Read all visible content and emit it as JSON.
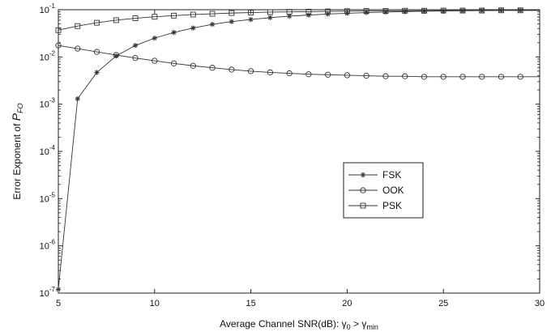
{
  "chart_data": {
    "type": "line",
    "xlabel": {
      "main": "Average Channel SNR(dB): ",
      "g0": "γ",
      "sub0": "0",
      "gt": " > ",
      "gmin": "γ",
      "submin": "min"
    },
    "ylabel": {
      "main": "Error Exponent of  ",
      "p": "P",
      "sub": "FO"
    },
    "xlim": [
      5,
      30
    ],
    "ylim": [
      1e-07,
      0.1
    ],
    "yscale": "log",
    "grid": false,
    "legend_position": "center-right",
    "x_ticks": [
      "5",
      "10",
      "15",
      "20",
      "25",
      "30"
    ],
    "y_ticks": [
      {
        "base": "10",
        "exp": "-7"
      },
      {
        "base": "10",
        "exp": "-6"
      },
      {
        "base": "10",
        "exp": "-5"
      },
      {
        "base": "10",
        "exp": "-4"
      },
      {
        "base": "10",
        "exp": "-3"
      },
      {
        "base": "10",
        "exp": "-2"
      },
      {
        "base": "10",
        "exp": "-1"
      }
    ],
    "x": [
      5,
      6,
      7,
      8,
      9,
      10,
      11,
      12,
      13,
      14,
      15,
      16,
      17,
      18,
      19,
      20,
      21,
      22,
      23,
      24,
      25,
      26,
      27,
      28,
      29
    ],
    "series": [
      {
        "name": "FSK",
        "marker": "asterisk",
        "color": "#333333",
        "values": [
          1.2e-07,
          0.0013,
          0.0047,
          0.0105,
          0.0175,
          0.025,
          0.033,
          0.041,
          0.049,
          0.056,
          0.062,
          0.068,
          0.073,
          0.077,
          0.081,
          0.084,
          0.087,
          0.089,
          0.091,
          0.093,
          0.094,
          0.095,
          0.096,
          0.097,
          0.097
        ]
      },
      {
        "name": "OOK",
        "marker": "circle",
        "color": "#333333",
        "values": [
          0.0175,
          0.015,
          0.0128,
          0.011,
          0.0095,
          0.0083,
          0.0073,
          0.0065,
          0.0059,
          0.0054,
          0.005,
          0.0047,
          0.0045,
          0.0043,
          0.0042,
          0.0041,
          0.004,
          0.0039,
          0.0039,
          0.0038,
          0.0038,
          0.0038,
          0.0038,
          0.0038,
          0.0038
        ]
      },
      {
        "name": "PSK",
        "marker": "square",
        "color": "#333333",
        "values": [
          0.037,
          0.045,
          0.053,
          0.06,
          0.066,
          0.071,
          0.075,
          0.079,
          0.082,
          0.085,
          0.087,
          0.089,
          0.09,
          0.091,
          0.092,
          0.093,
          0.094,
          0.094,
          0.095,
          0.095,
          0.096,
          0.096,
          0.096,
          0.097,
          0.097
        ]
      }
    ]
  }
}
